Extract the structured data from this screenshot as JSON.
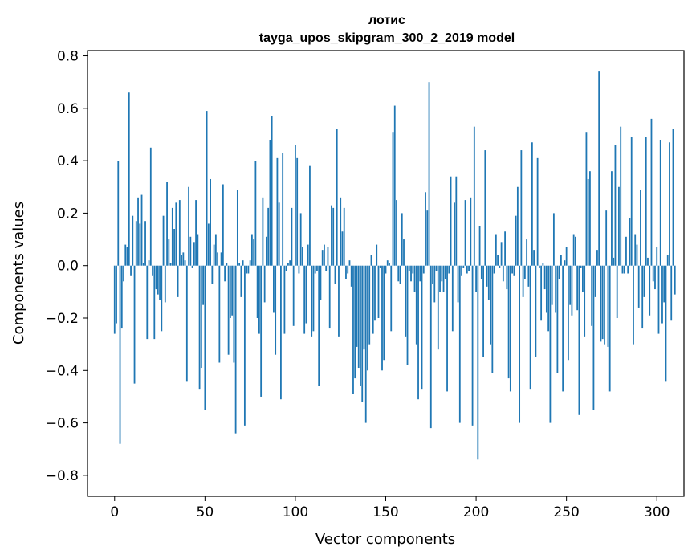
{
  "chart_data": {
    "type": "bar",
    "title": "лотис",
    "subtitle": "tayga_upos_skipgram_300_2_2019 model",
    "xlabel": "Vector components",
    "ylabel": "Components values",
    "xlim": [
      -15,
      315
    ],
    "ylim": [
      -0.88,
      0.82
    ],
    "xticks": [
      0,
      50,
      100,
      150,
      200,
      250,
      300
    ],
    "yticks": [
      -0.8,
      -0.6,
      -0.4,
      -0.2,
      0.0,
      0.2,
      0.4,
      0.6,
      0.8
    ],
    "ytick_labels": [
      "−0.8",
      "−0.6",
      "−0.4",
      "−0.2",
      "0.0",
      "0.2",
      "0.4",
      "0.6",
      "0.8"
    ],
    "bar_color": "#1f77b4",
    "grid": false,
    "x_start": 0,
    "values": [
      -0.26,
      -0.22,
      0.4,
      -0.68,
      -0.24,
      -0.06,
      0.08,
      0.07,
      0.66,
      -0.04,
      0.19,
      -0.45,
      0.17,
      0.26,
      0.16,
      0.27,
      0.01,
      0.17,
      -0.28,
      0.02,
      0.45,
      -0.04,
      -0.28,
      -0.09,
      -0.11,
      -0.13,
      -0.25,
      0.19,
      -0.14,
      0.32,
      0.1,
      0.01,
      0.22,
      0.14,
      0.24,
      -0.12,
      0.25,
      0.04,
      0.05,
      0.02,
      -0.44,
      0.3,
      0.11,
      -0.01,
      0.09,
      0.25,
      0.12,
      -0.47,
      -0.39,
      -0.15,
      -0.55,
      0.59,
      0.16,
      0.33,
      -0.07,
      0.08,
      0.12,
      0.05,
      -0.37,
      0.05,
      0.31,
      -0.06,
      0.01,
      -0.34,
      -0.2,
      -0.19,
      -0.37,
      -0.64,
      0.29,
      0.01,
      -0.12,
      0.02,
      -0.61,
      -0.03,
      -0.03,
      0.02,
      0.12,
      0.1,
      0.4,
      -0.2,
      -0.26,
      -0.5,
      0.26,
      -0.14,
      0.11,
      0.22,
      0.48,
      0.57,
      -0.18,
      -0.34,
      0.41,
      0.24,
      -0.51,
      0.43,
      -0.26,
      -0.02,
      0.01,
      0.02,
      0.22,
      -0.23,
      0.46,
      0.41,
      -0.03,
      0.2,
      0.07,
      -0.26,
      -0.22,
      0.08,
      0.38,
      -0.27,
      -0.25,
      -0.03,
      -0.02,
      -0.46,
      -0.13,
      0.06,
      0.08,
      -0.02,
      0.07,
      -0.24,
      0.23,
      0.22,
      -0.07,
      0.52,
      -0.27,
      0.26,
      0.13,
      0.22,
      -0.05,
      -0.03,
      0.02,
      -0.08,
      -0.49,
      -0.43,
      -0.31,
      -0.39,
      -0.46,
      -0.52,
      -0.32,
      -0.6,
      -0.4,
      -0.3,
      0.04,
      -0.26,
      -0.21,
      0.08,
      -0.2,
      -0.01,
      -0.4,
      -0.36,
      -0.03,
      0.02,
      0.01,
      -0.25,
      0.51,
      0.61,
      0.25,
      -0.06,
      -0.07,
      0.2,
      0.1,
      -0.27,
      -0.38,
      -0.02,
      -0.06,
      -0.03,
      -0.1,
      -0.3,
      -0.51,
      -0.06,
      -0.47,
      -0.03,
      0.28,
      0.21,
      0.7,
      -0.62,
      -0.07,
      -0.14,
      -0.02,
      -0.32,
      -0.1,
      -0.06,
      -0.1,
      -0.05,
      -0.48,
      -0.03,
      0.34,
      -0.25,
      0.24,
      0.34,
      -0.14,
      -0.6,
      -0.04,
      -0.01,
      0.25,
      -0.03,
      -0.02,
      0.26,
      -0.61,
      0.53,
      -0.1,
      -0.74,
      0.15,
      -0.05,
      -0.35,
      0.44,
      -0.08,
      -0.13,
      -0.3,
      -0.41,
      -0.03,
      0.12,
      0.04,
      -0.01,
      0.09,
      -0.06,
      0.13,
      -0.09,
      -0.43,
      -0.48,
      -0.03,
      -0.04,
      0.19,
      0.3,
      -0.6,
      0.44,
      -0.12,
      -0.05,
      0.1,
      -0.08,
      -0.47,
      0.47,
      0.06,
      -0.35,
      0.41,
      -0.01,
      -0.21,
      0.01,
      -0.09,
      -0.18,
      -0.25,
      -0.6,
      -0.15,
      0.2,
      -0.18,
      -0.41,
      -0.05,
      0.04,
      -0.48,
      0.02,
      0.07,
      -0.36,
      -0.15,
      -0.19,
      0.12,
      0.11,
      -0.17,
      -0.57,
      -0.01,
      -0.1,
      -0.27,
      0.51,
      0.33,
      0.36,
      -0.23,
      -0.55,
      -0.12,
      0.06,
      0.74,
      -0.29,
      -0.28,
      -0.3,
      0.21,
      -0.31,
      -0.48,
      0.36,
      0.03,
      0.46,
      -0.2,
      0.3,
      0.53,
      -0.03,
      -0.03,
      0.11,
      -0.03,
      0.18,
      0.49,
      -0.3,
      0.12,
      0.08,
      -0.16,
      0.29,
      -0.24,
      -0.12,
      0.49,
      0.03,
      -0.19,
      0.56,
      -0.06,
      -0.09,
      0.07,
      -0.26,
      0.48,
      -0.22,
      -0.14,
      -0.44,
      0.04,
      0.47,
      -0.21,
      0.52,
      -0.11
    ]
  }
}
